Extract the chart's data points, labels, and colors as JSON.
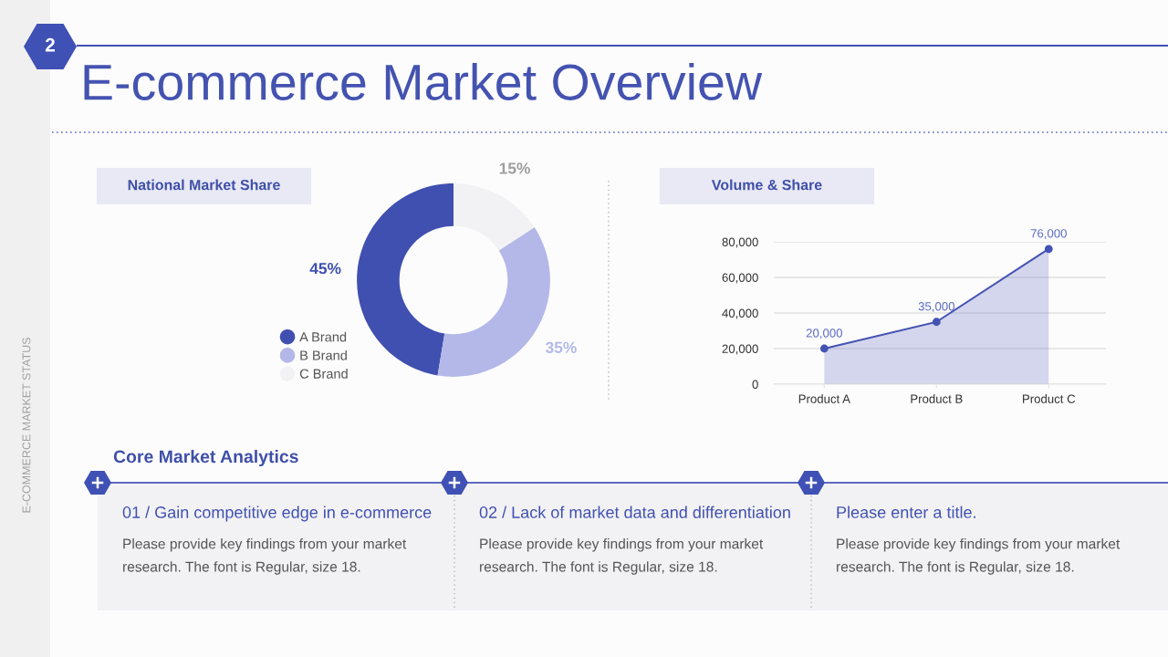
{
  "chart_data": [
    {
      "type": "other",
      "title": "E-commerce Market Overview",
      "annotations": [
        "2",
        "E-COMMERCE MARKET STATUS"
      ]
    },
    {
      "type": "donut",
      "title": "National Market Share",
      "categories": [
        "A Brand",
        "B Brand",
        "C Brand"
      ],
      "values": [
        45,
        35,
        15
      ],
      "colors": [
        "#4050b0",
        "#b3b8e8",
        "#f2f2f4"
      ],
      "value_labels": [
        "45%",
        "35%",
        "15%"
      ],
      "legend": "bottom left"
    },
    {
      "type": "area",
      "title": "Volume & Share",
      "categories": [
        "Product A",
        "Product B",
        "Product C"
      ],
      "series": [
        {
          "color": "#4453b3",
          "values": [
            20000,
            35000,
            76000
          ],
          "value_labels": [
            "20,000",
            "35,000",
            "76,000"
          ]
        }
      ],
      "ylim": [
        0,
        80000
      ],
      "yticks": [
        0,
        {
          "value": 20000,
          "label": "20,000"
        },
        {
          "value": 40000,
          "label": "40,000"
        },
        {
          "value": 60000,
          "label": "60,000"
        },
        {
          "value": 80000,
          "label": "80,000"
        }
      ],
      "grid": "y",
      "marker": "circle"
    },
    {
      "type": "other",
      "title": "Core Market Analytics",
      "annotations": [
        "01 / Gain competitive edge in e-commerce",
        "Please provide key findings from your market\nresearch. The font is Regular, size 18.",
        "02 / Lack of market data and differentiation",
        "Please provide key findings from your market\nresearch. The font is Regular, size 18.",
        "Please enter a title.",
        "Please provide key findings from your market\nresearch. The font is Regular, size 18."
      ]
    }
  ]
}
